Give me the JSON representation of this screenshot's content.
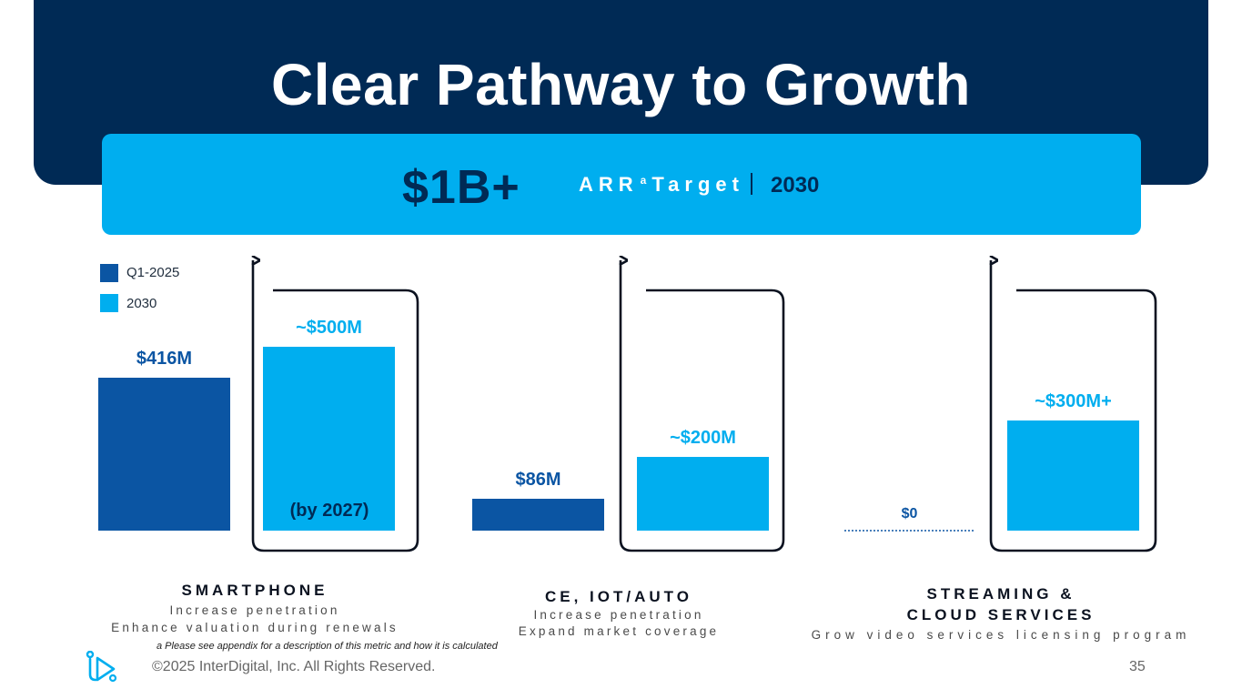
{
  "slide": {
    "title": "Clear Pathway to Growth",
    "page_number": "35",
    "footnote": "a Please see appendix for a description of this metric and how it is calculated",
    "copyright": "©2025 InterDigital, Inc. All Rights Reserved."
  },
  "banner": {
    "value": "$1B+",
    "label": "ARR",
    "superscript": "a",
    "label_suffix": "Target",
    "year": "2030"
  },
  "colors": {
    "navy": "#002a55",
    "q1_2025": "#0b55a3",
    "y2030": "#00aeef",
    "value_navy": "#0b55a3",
    "value_light": "#00aeef"
  },
  "legend": [
    {
      "label": "Q1-2025",
      "color": "#0b55a3"
    },
    {
      "label": "2030",
      "color": "#00aeef"
    }
  ],
  "segments": [
    {
      "title": "SMARTPHONE",
      "title2": "",
      "lines": [
        "Increase penetration",
        "Enhance valuation during renewals"
      ],
      "note": "(by 2027)"
    },
    {
      "title": "CE, IOT/AUTO",
      "title2": "",
      "lines": [
        "Increase penetration",
        "Expand market coverage"
      ],
      "note": ""
    },
    {
      "title": "STREAMING &",
      "title2": "CLOUD SERVICES",
      "lines": [
        "Grow video services licensing program"
      ],
      "note": ""
    }
  ],
  "chart_data": {
    "type": "bar",
    "title": "Clear Pathway to Growth",
    "categories": [
      "SMARTPHONE",
      "CE, IOT/AUTO",
      "STREAMING & CLOUD SERVICES"
    ],
    "series": [
      {
        "name": "Q1-2025",
        "values": [
          416,
          86,
          0
        ],
        "labels": [
          "$416M",
          "$86M",
          "$0"
        ]
      },
      {
        "name": "2030",
        "values": [
          500,
          200,
          300
        ],
        "labels": [
          "~$500M",
          "~$200M",
          "~$300M+"
        ]
      }
    ],
    "unit": "$M",
    "ylim": [
      0,
      520
    ],
    "legend": "top-left"
  }
}
